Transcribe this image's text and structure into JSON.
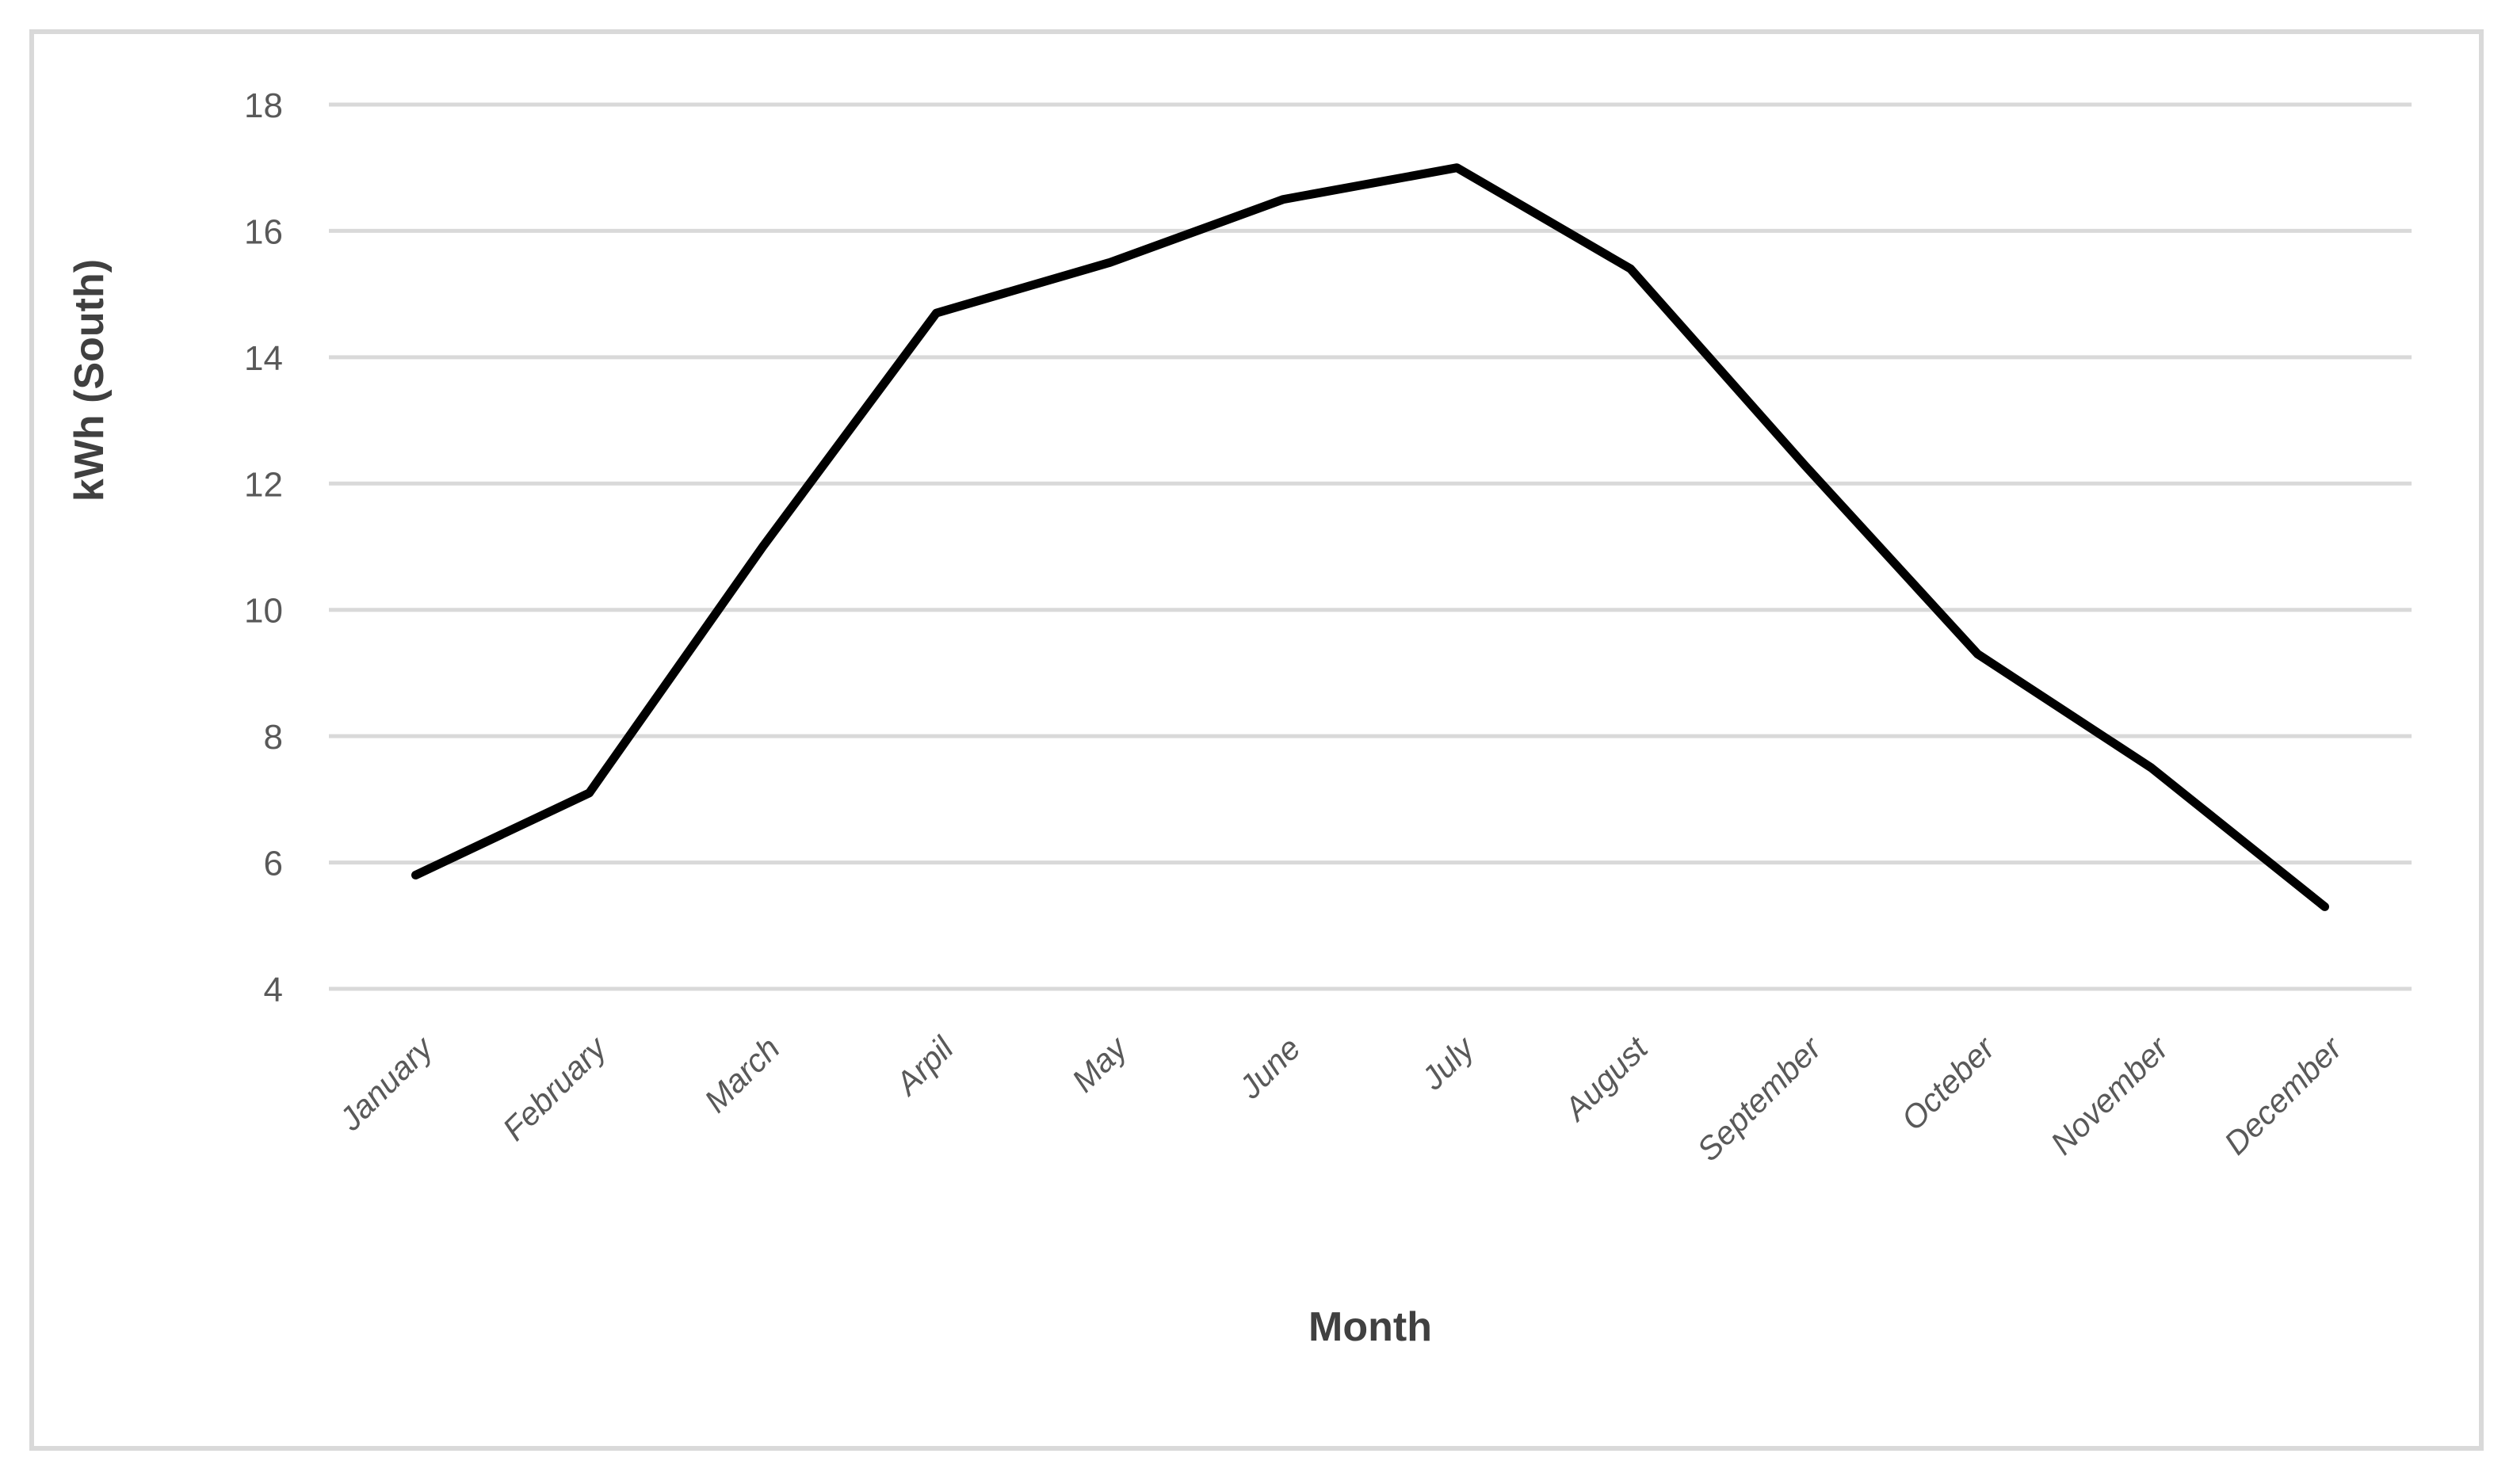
{
  "chart_data": {
    "type": "line",
    "categories": [
      "January",
      "February",
      "March",
      "Arpil",
      "May",
      "June",
      "July",
      "August",
      "September",
      "Octeber",
      "November",
      "December"
    ],
    "series": [
      {
        "name": "kWh (South)",
        "values": [
          5.8,
          7.1,
          11.0,
          14.7,
          15.5,
          16.5,
          17.0,
          15.4,
          12.3,
          9.3,
          7.5,
          5.3
        ]
      }
    ],
    "title": "",
    "xlabel": "Month",
    "ylabel": "kWh (South)",
    "ylim": [
      4,
      18
    ],
    "yticks": [
      4,
      6,
      8,
      10,
      12,
      14,
      16,
      18
    ],
    "grid": "horizontal-only",
    "legend": "none",
    "line_color": "#000000",
    "line_width": 11,
    "grid_color": "#d9d9d9",
    "border_color": "#d9d9d9",
    "tick_label_color": "#595959",
    "axis_title_color": "#404040",
    "x_label_rotation_deg": -45
  }
}
